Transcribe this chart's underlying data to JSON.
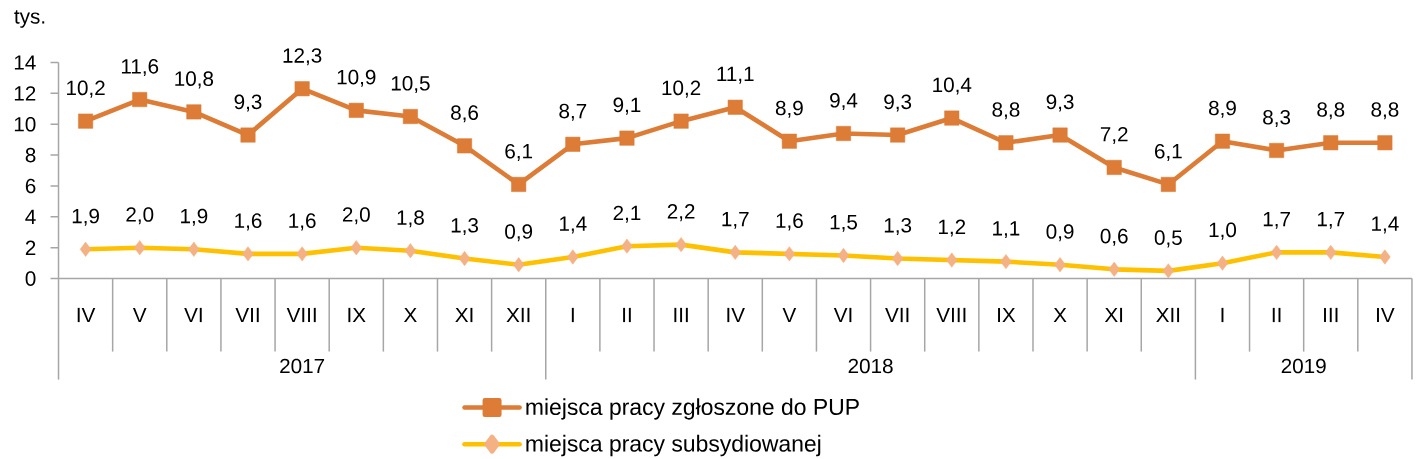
{
  "chart_data": {
    "type": "line",
    "ylabel": "tys.",
    "categories": [
      "IV",
      "V",
      "VI",
      "VII",
      "VIII",
      "IX",
      "X",
      "XI",
      "XII",
      "I",
      "II",
      "III",
      "IV",
      "V",
      "VI",
      "VII",
      "VIII",
      "IX",
      "X",
      "XI",
      "XII",
      "I",
      "II",
      "III",
      "IV"
    ],
    "ylim": [
      0,
      14
    ],
    "yticks": [
      0,
      2,
      4,
      6,
      8,
      10,
      12,
      14
    ],
    "annotations": [
      "2017",
      "2018",
      "2019"
    ],
    "legend": "bottom",
    "series": [
      {
        "name": "miejsca pracy zgłoszone do PUP",
        "color": "#DC7C36",
        "marker": "square",
        "values": [
          10.2,
          11.6,
          10.8,
          9.3,
          12.3,
          10.9,
          10.5,
          8.6,
          6.1,
          8.7,
          9.1,
          10.2,
          11.1,
          8.9,
          9.4,
          9.3,
          10.4,
          8.8,
          9.3,
          7.2,
          6.1,
          8.9,
          8.3,
          8.8,
          8.8
        ],
        "value_labels": [
          "10,2",
          "11,6",
          "10,8",
          "9,3",
          "12,3",
          "10,9",
          "10,5",
          "8,6",
          "6,1",
          "8,7",
          "9,1",
          "10,2",
          "11,1",
          "8,9",
          "9,4",
          "9,3",
          "10,4",
          "8,8",
          "9,3",
          "7,2",
          "6,1",
          "8,9",
          "8,3",
          "8,8",
          "8,8"
        ]
      },
      {
        "name": "miejsca pracy subsydiowanej",
        "color": "#FFC000",
        "marker": "diamond",
        "colors": [
          "#F4B183",
          "#F4B183",
          "#F4B183",
          "#F4B183",
          "#F4B183",
          "#F4B183",
          "#F4B183",
          "#F4B183",
          "#F4B183",
          "#F4B183",
          "#F4B183",
          "#F4B183",
          "#F4B183",
          "#F4B183",
          "#F4B183",
          "#F4B183",
          "#F4B183",
          "#F4B183",
          "#F4B183",
          "#F4B183",
          "#F4B183",
          "#F4B183",
          "#F4B183",
          "#F4B183",
          "#F4B183"
        ],
        "values": [
          1.9,
          2.0,
          1.9,
          1.6,
          1.6,
          2.0,
          1.8,
          1.3,
          0.9,
          1.4,
          2.1,
          2.2,
          1.7,
          1.6,
          1.5,
          1.3,
          1.2,
          1.1,
          0.9,
          0.6,
          0.5,
          1.0,
          1.7,
          1.7,
          1.4
        ],
        "value_labels": [
          "1,9",
          "2,0",
          "1,9",
          "1,6",
          "1,6",
          "2,0",
          "1,8",
          "1,3",
          "0,9",
          "1,4",
          "2,1",
          "2,2",
          "1,7",
          "1,6",
          "1,5",
          "1,3",
          "1,2",
          "1,1",
          "0,9",
          "0,6",
          "0,5",
          "1,0",
          "1,7",
          "1,7",
          "1,4"
        ]
      }
    ]
  }
}
